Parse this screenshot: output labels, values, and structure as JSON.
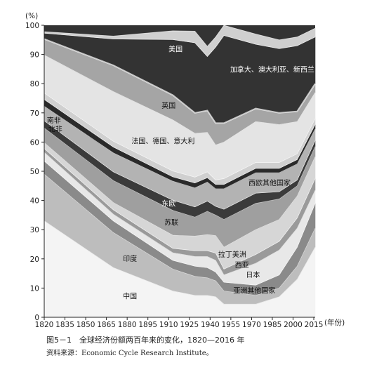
{
  "chart_data": {
    "type": "area",
    "stacked": true,
    "title": "图5－1　全球经济份额两百年来的变化，1820—2016 年",
    "source": "资料来源：Economic Cycle Research Institute。",
    "ylabel": "(%)",
    "xlabel": "(年份)",
    "xlim": [
      1820,
      2016
    ],
    "ylim": [
      0,
      100
    ],
    "x_ticks": [
      1820,
      1835,
      1850,
      1865,
      1880,
      1895,
      1910,
      1925,
      1940,
      1955,
      1970,
      1985,
      2000,
      2015
    ],
    "y_ticks": [
      0,
      10,
      20,
      30,
      40,
      50,
      60,
      70,
      80,
      90,
      100
    ],
    "x": [
      1820,
      1870,
      1913,
      1929,
      1938,
      1944,
      1950,
      1973,
      1990,
      2003,
      2016
    ],
    "series": [
      {
        "name": "中国",
        "color": "#f4f4f4",
        "values": [
          33.0,
          17.0,
          9.0,
          7.5,
          7.5,
          7.0,
          4.5,
          4.5,
          7.0,
          13.0,
          24.0
        ]
      },
      {
        "name": "印度",
        "color": "#bdbdbd",
        "values": [
          16.0,
          12.0,
          7.5,
          6.5,
          6.0,
          5.5,
          4.5,
          3.0,
          3.0,
          4.5,
          6.5
        ]
      },
      {
        "name": "亚洲其他国家",
        "color": "#8a8a8a",
        "values": [
          4.5,
          4.0,
          3.0,
          3.5,
          3.5,
          3.0,
          3.0,
          3.5,
          4.5,
          6.5,
          8.5
        ]
      },
      {
        "name": "日本",
        "color": "#e8e8e8",
        "values": [
          3.0,
          2.3,
          2.6,
          3.3,
          3.8,
          4.0,
          2.5,
          7.5,
          8.5,
          6.5,
          4.5
        ]
      },
      {
        "name": "西亚",
        "color": "#9a9a9a",
        "values": [
          1.3,
          1.5,
          1.5,
          2.0,
          2.0,
          2.5,
          2.0,
          3.0,
          3.0,
          3.5,
          4.0
        ]
      },
      {
        "name": "拉丁美洲",
        "color": "#d6d6d6",
        "values": [
          2.0,
          2.5,
          4.5,
          5.0,
          5.5,
          6.0,
          7.5,
          8.5,
          7.5,
          7.5,
          7.5
        ]
      },
      {
        "name": "苏联",
        "color": "#9f9f9f",
        "values": [
          5.0,
          7.5,
          8.5,
          6.5,
          8.0,
          7.0,
          9.5,
          9.0,
          7.0,
          3.5,
          3.5
        ]
      },
      {
        "name": "东欧",
        "color": "#3b3b3b",
        "values": [
          2.5,
          3.0,
          3.5,
          3.5,
          3.5,
          3.0,
          3.5,
          3.5,
          2.5,
          2.0,
          2.0
        ]
      },
      {
        "name": "西欧其他国家",
        "color": "#b3b3b3",
        "values": [
          5.0,
          6.5,
          6.5,
          6.5,
          6.5,
          6.0,
          7.0,
          7.0,
          6.5,
          5.5,
          4.0
        ]
      },
      {
        "name": "北非",
        "color": "#2a2a2a",
        "values": [
          2.3,
          2.0,
          1.5,
          1.7,
          1.5,
          1.5,
          1.5,
          1.5,
          1.5,
          1.5,
          1.5
        ]
      },
      {
        "name": "南非",
        "color": "#d0d0d0",
        "values": [
          2.2,
          2.0,
          2.0,
          2.0,
          2.0,
          1.5,
          2.0,
          2.0,
          2.0,
          2.0,
          2.0
        ]
      },
      {
        "name": "法国、德国、意大利",
        "color": "#e4e4e4",
        "values": [
          13.0,
          17.0,
          17.5,
          15.0,
          13.5,
          12.0,
          12.5,
          14.0,
          13.0,
          11.0,
          9.0
        ]
      },
      {
        "name": "英国",
        "color": "#a5a5a5",
        "values": [
          5.5,
          9.0,
          8.5,
          7.0,
          7.5,
          7.5,
          6.5,
          4.5,
          4.0,
          3.5,
          3.0
        ]
      },
      {
        "name": "美国",
        "color": "#333333",
        "values": [
          2.0,
          9.0,
          19.0,
          24.0,
          18.5,
          26.0,
          30.0,
          22.0,
          22.0,
          22.5,
          16.0
        ]
      },
      {
        "name": "加拿大、澳大利亚、新西兰",
        "color": "#cfcfcf",
        "values": [
          0.5,
          1.0,
          3.0,
          4.0,
          3.5,
          3.5,
          3.5,
          3.5,
          3.0,
          3.0,
          3.0
        ]
      }
    ]
  }
}
